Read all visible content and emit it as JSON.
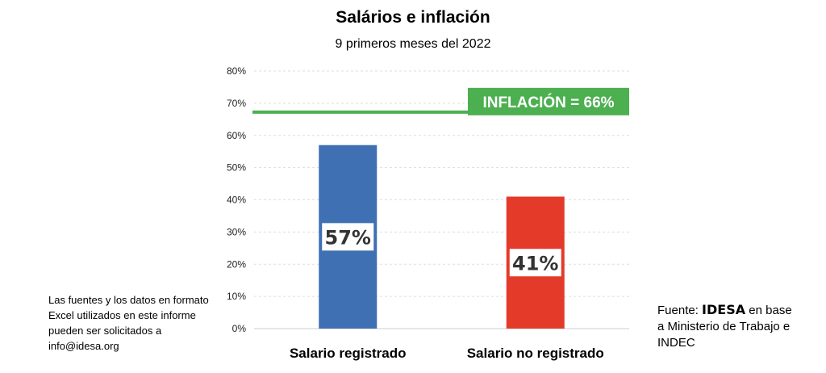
{
  "chart_data": {
    "type": "bar",
    "title": "Salários e inflación",
    "subtitle": "9 primeros meses del 2022",
    "categories": [
      "Salario registrado",
      "Salario no registrado"
    ],
    "values": [
      57,
      41
    ],
    "data_labels": [
      "57%",
      "41%"
    ],
    "bar_colors": [
      "#3f70b3",
      "#e43a2a"
    ],
    "ylim": [
      0,
      80
    ],
    "yticks": [
      "0%",
      "10%",
      "20%",
      "30%",
      "40%",
      "50%",
      "60%",
      "70%",
      "80%"
    ],
    "grid": true,
    "reference_line": {
      "value": 66,
      "label": "INFLACIÓN = 66%",
      "color": "#4caf50"
    }
  },
  "notes": {
    "left": "Las fuentes y los datos en formato Excel utilizados en este informe pueden ser solicitados a info@idesa.org",
    "source_prefix": "Fuente: ",
    "source_brand": "IDESA",
    "source_suffix": " en base a Ministerio de Trabajo e INDEC"
  }
}
